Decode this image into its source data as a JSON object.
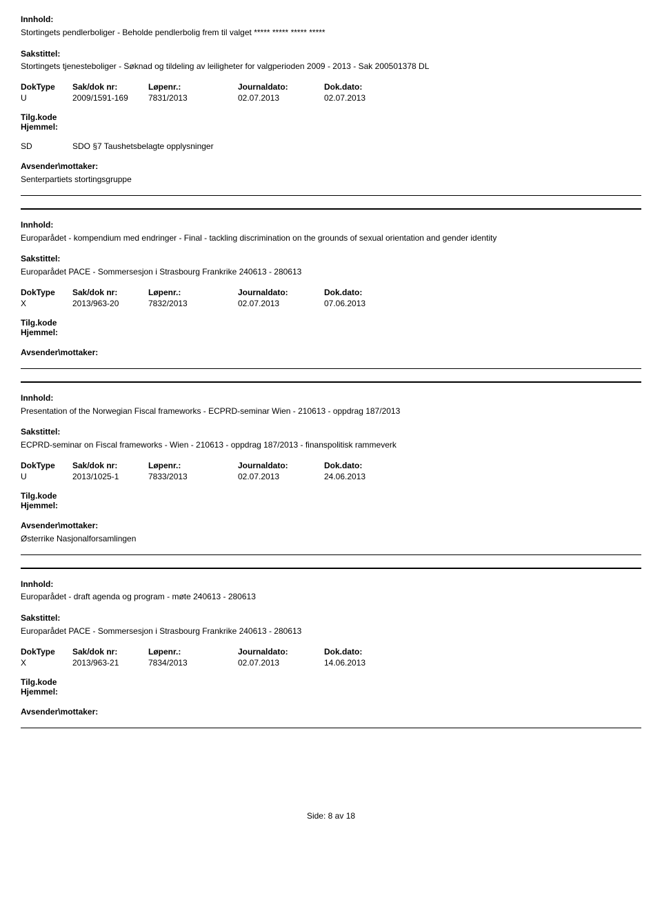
{
  "labels": {
    "innhold": "Innhold:",
    "sakstittel": "Sakstittel:",
    "doktype": "DokType",
    "sakdok": "Sak/dok nr:",
    "lopenr": "Løpenr.:",
    "journaldato": "Journaldato:",
    "dokdato": "Dok.dato:",
    "tilgkode": "Tilg.kode",
    "hjemmel": "Hjemmel:",
    "avsender": "Avsender\\mottaker:"
  },
  "records": [
    {
      "innhold": "Stortingets pendlerboliger - Beholde pendlerbolig frem til valget ***** ***** ***** *****",
      "sakstittel": "Stortingets tjenesteboliger - Søknad og tildeling av leiligheter for valgperioden 2009 - 2013 - Sak 200501378 DL",
      "doktype": "U",
      "sakdok": "2009/1591-169",
      "lopenr": "7831/2013",
      "journaldato": "02.07.2013",
      "dokdato": "02.07.2013",
      "tilgkode": "SD",
      "hjemmel": "SDO §7 Taushetsbelagte opplysninger",
      "avsender": "Senterpartiets stortingsgruppe"
    },
    {
      "innhold": "Europarådet - kompendium med endringer - Final - tackling discrimination on the grounds of sexual orientation and gender identity",
      "sakstittel": "Europarådet PACE - Sommersesjon i Strasbourg Frankrike 240613 - 280613",
      "doktype": "X",
      "sakdok": "2013/963-20",
      "lopenr": "7832/2013",
      "journaldato": "02.07.2013",
      "dokdato": "07.06.2013",
      "tilgkode": "",
      "hjemmel": "",
      "avsender": ""
    },
    {
      "innhold": "Presentation of the  Norwegian  Fiscal frameworks  - ECPRD-seminar  Wien - 210613 - oppdrag 187/2013",
      "sakstittel": "ECPRD-seminar on Fiscal frameworks  - Wien - 210613 - oppdrag 187/2013 - finanspolitisk rammeverk",
      "doktype": "U",
      "sakdok": "2013/1025-1",
      "lopenr": "7833/2013",
      "journaldato": "02.07.2013",
      "dokdato": "24.06.2013",
      "tilgkode": "",
      "hjemmel": "",
      "avsender": "Østerrike Nasjonalforsamlingen"
    },
    {
      "innhold": "Europarådet - draft agenda og program - møte 240613 - 280613",
      "sakstittel": "Europarådet PACE - Sommersesjon i Strasbourg Frankrike 240613 - 280613",
      "doktype": "X",
      "sakdok": "2013/963-21",
      "lopenr": "7834/2013",
      "journaldato": "02.07.2013",
      "dokdato": "14.06.2013",
      "tilgkode": "",
      "hjemmel": "",
      "avsender": ""
    }
  ],
  "footer": {
    "prefix": "Side:",
    "current": "8",
    "sep": "av",
    "total": "18"
  }
}
